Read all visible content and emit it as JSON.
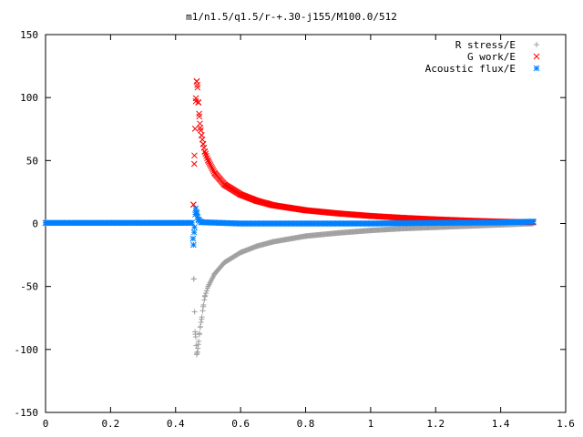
{
  "chart_data": {
    "type": "scatter",
    "title": "m1/n1.5/q1.5/r-+.30-j155/M100.0/512",
    "xlabel": "",
    "ylabel": "",
    "xlim": [
      0,
      1.6
    ],
    "ylim": [
      -150,
      150
    ],
    "x_ticks": [
      "0",
      "0.2",
      "0.4",
      "0.6",
      "0.8",
      "1",
      "1.2",
      "1.4",
      "1.6"
    ],
    "y_ticks": [
      "150",
      "100",
      "50",
      "0",
      "-50",
      "-100",
      "-150"
    ],
    "grid": false,
    "legend_position": "top-right",
    "x_range_data": [
      0.0,
      1.5
    ],
    "spike_x": 0.455,
    "series": [
      {
        "name": "R stress/E",
        "marker": "plus",
        "color": "#a0a0a0",
        "description_points": [
          [
            0.456,
            -44
          ],
          [
            0.46,
            -86
          ],
          [
            0.462,
            -90
          ],
          [
            0.465,
            -104
          ],
          [
            0.467,
            -102
          ],
          [
            0.47,
            -96
          ],
          [
            0.473,
            -88
          ],
          [
            0.476,
            -82
          ],
          [
            0.48,
            -76
          ],
          [
            0.485,
            -66
          ],
          [
            0.49,
            -58
          ],
          [
            0.5,
            -50
          ],
          [
            0.52,
            -40
          ],
          [
            0.55,
            -31
          ],
          [
            0.6,
            -23
          ],
          [
            0.65,
            -18
          ],
          [
            0.7,
            -14.5
          ],
          [
            0.8,
            -10
          ],
          [
            0.9,
            -7.5
          ],
          [
            1.0,
            -5.5
          ],
          [
            1.1,
            -4
          ],
          [
            1.2,
            -3
          ],
          [
            1.3,
            -2
          ],
          [
            1.4,
            -1
          ],
          [
            1.5,
            0
          ]
        ]
      },
      {
        "name": "G work/E",
        "marker": "cross",
        "color": "#ff0000",
        "description_points": [
          [
            0.455,
            15
          ],
          [
            0.458,
            54
          ],
          [
            0.462,
            97
          ],
          [
            0.465,
            113
          ],
          [
            0.467,
            110
          ],
          [
            0.47,
            96
          ],
          [
            0.473,
            85
          ],
          [
            0.476,
            76
          ],
          [
            0.48,
            70
          ],
          [
            0.485,
            63
          ],
          [
            0.49,
            57
          ],
          [
            0.5,
            50
          ],
          [
            0.52,
            40
          ],
          [
            0.55,
            31
          ],
          [
            0.6,
            23
          ],
          [
            0.65,
            18
          ],
          [
            0.7,
            14.5
          ],
          [
            0.8,
            10.5
          ],
          [
            0.9,
            8
          ],
          [
            1.0,
            6
          ],
          [
            1.1,
            4.5
          ],
          [
            1.2,
            3.3
          ],
          [
            1.3,
            2.3
          ],
          [
            1.4,
            1.5
          ],
          [
            1.5,
            1
          ]
        ]
      },
      {
        "name": "Acoustic flux/E",
        "marker": "star",
        "color": "#0080ff",
        "description_points": [
          [
            0.0,
            0.5
          ],
          [
            0.2,
            0.5
          ],
          [
            0.4,
            0.5
          ],
          [
            0.45,
            0.5
          ],
          [
            0.455,
            -17
          ],
          [
            0.458,
            -3
          ],
          [
            0.462,
            12
          ],
          [
            0.465,
            8
          ],
          [
            0.47,
            3
          ],
          [
            0.48,
            1
          ],
          [
            0.6,
            0
          ],
          [
            0.8,
            0
          ],
          [
            1.0,
            0
          ],
          [
            1.2,
            0.5
          ],
          [
            1.4,
            0.8
          ],
          [
            1.5,
            1.5
          ]
        ]
      }
    ]
  }
}
